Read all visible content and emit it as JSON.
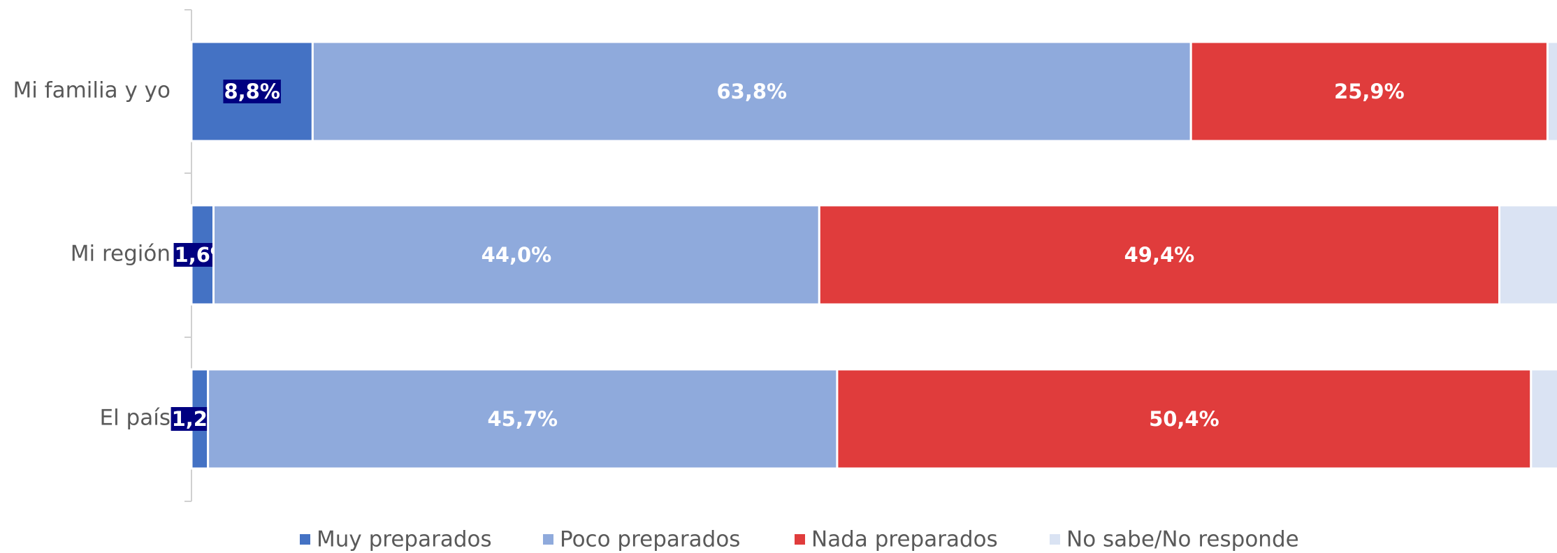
{
  "chart_data": {
    "type": "stacked-barh",
    "categories": [
      "Mi familia y yo",
      "Mi región",
      "El país"
    ],
    "series": [
      {
        "name": "Muy preparados",
        "color": "#4472c4",
        "values": [
          8.8,
          1.6,
          1.2
        ],
        "value_labels": [
          "8,8%",
          "1,6%",
          "1,2%"
        ]
      },
      {
        "name": "Poco preparados",
        "color": "#8faadc",
        "values": [
          63.8,
          44.0,
          45.7
        ],
        "value_labels": [
          "63,8%",
          "44,0%",
          "45,7%"
        ]
      },
      {
        "name": "Nada preparados",
        "color": "#e03c3c",
        "values": [
          25.9,
          49.4,
          50.4
        ],
        "value_labels": [
          "25,9%",
          "49,4%",
          "50,4%"
        ]
      },
      {
        "name": "No sabe/No responde",
        "color": "#dae3f3",
        "values": [
          1.5,
          5.0,
          2.7
        ]
      }
    ],
    "xlim": [
      0,
      100
    ]
  }
}
